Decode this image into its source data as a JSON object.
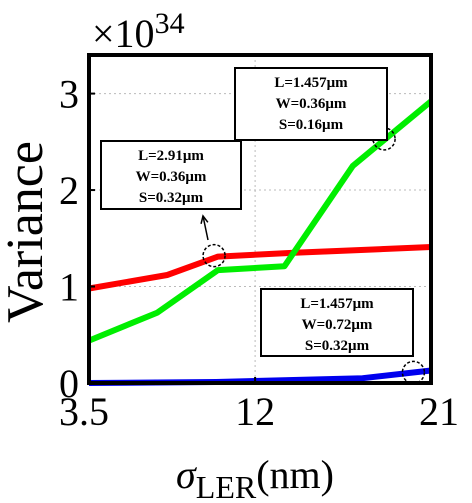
{
  "chart_data": {
    "type": "line",
    "ylabel": "Variance",
    "xlabel_symbol": "σ",
    "xlabel_subscript": "LER",
    "xlabel_unit": "(nm)",
    "multiplier_base": "×10",
    "multiplier_exponent": "34",
    "xlim": [
      3.5,
      21
    ],
    "ylim": [
      0,
      3.4
    ],
    "xticks": [
      {
        "value": 3.5,
        "label": "3.5"
      },
      {
        "value": 12,
        "label": "12"
      },
      {
        "value": 21,
        "label": "21"
      }
    ],
    "yticks": [
      {
        "value": 0,
        "label": "0"
      },
      {
        "value": 1,
        "label": "1"
      },
      {
        "value": 2,
        "label": "2"
      },
      {
        "value": 3,
        "label": "3"
      }
    ],
    "grid": true,
    "series": [
      {
        "color": "#ff0000",
        "points": [
          [
            3.5,
            0.98
          ],
          [
            7.5,
            1.12
          ],
          [
            10.1,
            1.31
          ],
          [
            14,
            1.35
          ],
          [
            21,
            1.41
          ]
        ]
      },
      {
        "color": "#00ee00",
        "points": [
          [
            3.5,
            0.44
          ],
          [
            7,
            0.73
          ],
          [
            10.1,
            1.17
          ],
          [
            13.5,
            1.21
          ],
          [
            17,
            2.25
          ],
          [
            21,
            2.92
          ]
        ]
      },
      {
        "color": "#0000ee",
        "points": [
          [
            3.5,
            0.0
          ],
          [
            10,
            0.01
          ],
          [
            17.5,
            0.05
          ],
          [
            21,
            0.13
          ]
        ]
      }
    ],
    "annotations": [
      {
        "lines": [
          "L=1.457μm",
          "W=0.36μm",
          "S=0.16μm"
        ],
        "target": [
          18.6,
          2.53
        ],
        "series": 1
      },
      {
        "lines": [
          "L=2.91μm",
          "W=0.36μm",
          "S=0.32μm"
        ],
        "target": [
          9.9,
          1.32
        ],
        "series": 0
      },
      {
        "lines": [
          "L=1.457μm",
          "W=0.72μm",
          "S=0.32μm"
        ],
        "target": [
          20.1,
          0.11
        ],
        "series": 2
      }
    ]
  }
}
